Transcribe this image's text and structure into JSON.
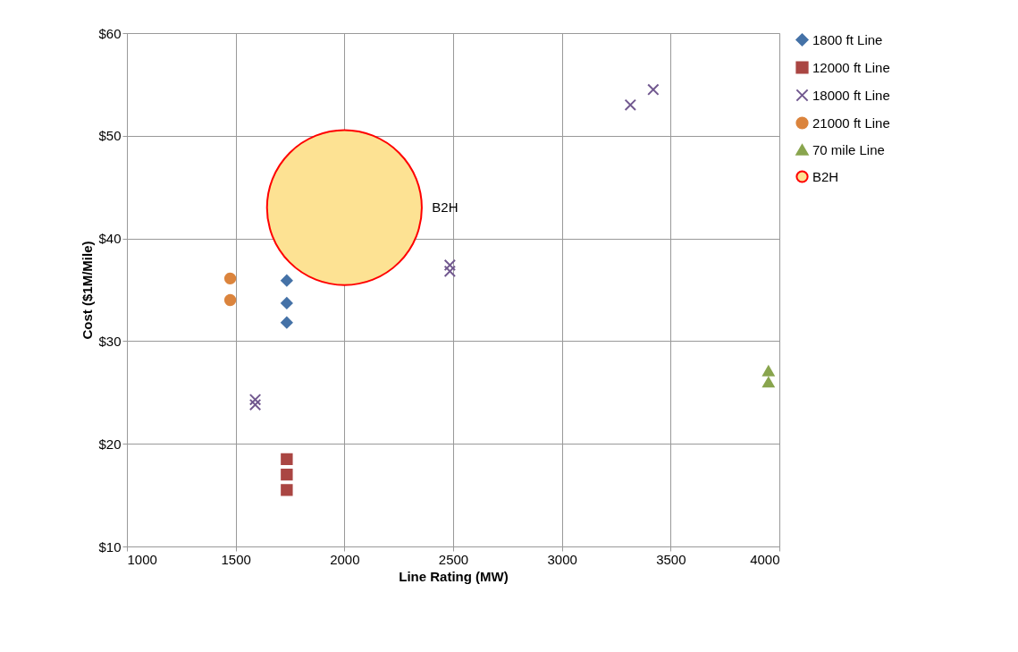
{
  "chart_data": {
    "type": "scatter",
    "xlabel": "Line Rating (MW)",
    "ylabel": "Cost ($1M/Mile)",
    "xlim": [
      1000,
      4000
    ],
    "xticks": [
      1000,
      1500,
      2000,
      2500,
      3000,
      3500,
      4000
    ],
    "ylim": [
      10,
      60
    ],
    "yticks": [
      {
        "value": 10,
        "label": "$10"
      },
      {
        "value": 20,
        "label": "$20"
      },
      {
        "value": 30,
        "label": "$30"
      },
      {
        "value": 40,
        "label": "$40"
      },
      {
        "value": 50,
        "label": "$50"
      },
      {
        "value": 60,
        "label": "$60"
      }
    ],
    "grid": true,
    "legend": "right",
    "series": [
      {
        "name": "1800 ft Line",
        "color": "#4572a7",
        "marker": "diamond",
        "x": [
          1735,
          1735,
          1735
        ],
        "values": [
          35.9,
          33.7,
          31.8
        ]
      },
      {
        "name": "12000 ft Line",
        "color": "#aa4643",
        "marker": "square",
        "x": [
          1735,
          1735,
          1735
        ],
        "values": [
          18.5,
          17,
          15.5
        ]
      },
      {
        "name": "18000 ft Line",
        "color": "#71588f",
        "marker": "cross",
        "x": [
          1590,
          1590,
          2485,
          2485,
          3315,
          3420
        ],
        "values": [
          24.3,
          23.8,
          37.4,
          36.8,
          53.0,
          54.5
        ]
      },
      {
        "name": "21000 ft Line",
        "color": "#db843d",
        "marker": "circle",
        "x": [
          1475,
          1475
        ],
        "values": [
          36.1,
          34.0
        ]
      },
      {
        "name": "70 mile Line",
        "color": "#89a54e",
        "marker": "triangle",
        "x": [
          3950,
          3950
        ],
        "values": [
          27.1,
          26.0
        ]
      },
      {
        "name": "B2H",
        "type": "bubble",
        "color": "#fde293",
        "marker": "circle",
        "x": [
          2000
        ],
        "values": [
          43.0
        ],
        "sizes": [
          1
        ]
      }
    ],
    "annotations": [
      "B2H"
    ]
  }
}
